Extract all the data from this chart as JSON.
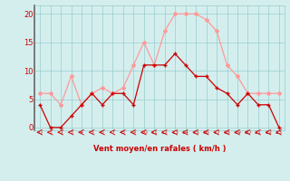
{
  "hours": [
    0,
    1,
    2,
    3,
    4,
    5,
    6,
    7,
    8,
    9,
    10,
    11,
    12,
    13,
    14,
    15,
    16,
    17,
    18,
    19,
    20,
    21,
    22,
    23
  ],
  "wind_avg": [
    4,
    0,
    0,
    2,
    4,
    6,
    4,
    6,
    6,
    4,
    11,
    11,
    11,
    13,
    11,
    9,
    9,
    7,
    6,
    4,
    6,
    4,
    4,
    0
  ],
  "wind_gust": [
    6,
    6,
    4,
    9,
    4,
    6,
    7,
    6,
    7,
    11,
    15,
    11,
    17,
    20,
    20,
    20,
    19,
    17,
    11,
    9,
    6,
    6,
    6,
    6
  ],
  "color_avg": "#cc0000",
  "color_gust": "#ff9999",
  "bg_color": "#d4eeee",
  "grid_color": "#99cccc",
  "xlabel": "Vent moyen/en rafales ( km/h )",
  "xlabel_color": "#cc0000",
  "tick_color": "#cc0000",
  "yticks": [
    0,
    5,
    10,
    15,
    20
  ],
  "ylim": [
    -0.5,
    21.5
  ],
  "xlim": [
    -0.5,
    23.5
  ],
  "left_spine_color": "#666666"
}
